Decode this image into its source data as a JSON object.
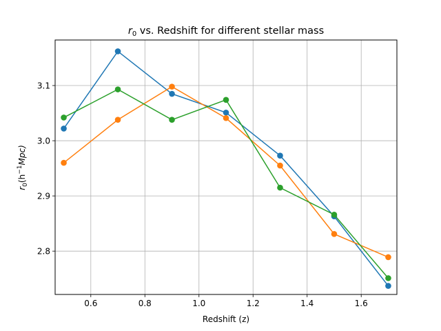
{
  "chart_data": {
    "type": "line",
    "title_main": "r",
    "title_sub": "0",
    "title_rest": " vs. Redshift for different stellar mass",
    "xlabel": "Redshift (z)",
    "ylabel_r": "r",
    "ylabel_sub": "0",
    "ylabel_open": "(h",
    "ylabel_sup": "−1",
    "ylabel_rest": "Mpc)",
    "xlim": [
      0.468,
      1.732
    ],
    "ylim": [
      2.7215,
      3.1825
    ],
    "xticks": [
      0.6,
      0.8,
      1.0,
      1.2,
      1.4,
      1.6
    ],
    "xtick_labels": [
      "0.6",
      "0.8",
      "1.0",
      "1.2",
      "1.4",
      "1.6"
    ],
    "yticks": [
      2.8,
      2.9,
      3.0,
      3.1
    ],
    "ytick_labels": [
      "2.8",
      "2.9",
      "3.0",
      "3.1"
    ],
    "grid": true,
    "x": [
      0.5,
      0.7,
      0.9,
      1.1,
      1.3,
      1.5,
      1.7
    ],
    "series": [
      {
        "color": "#1f77b4",
        "values": [
          3.022,
          3.162,
          3.085,
          3.051,
          2.973,
          2.863,
          2.737
        ]
      },
      {
        "color": "#ff7f0e",
        "values": [
          2.96,
          3.038,
          3.098,
          3.041,
          2.955,
          2.831,
          2.789
        ]
      },
      {
        "color": "#2ca02c",
        "values": [
          3.042,
          3.093,
          3.038,
          3.074,
          2.915,
          2.866,
          2.751
        ]
      }
    ]
  }
}
